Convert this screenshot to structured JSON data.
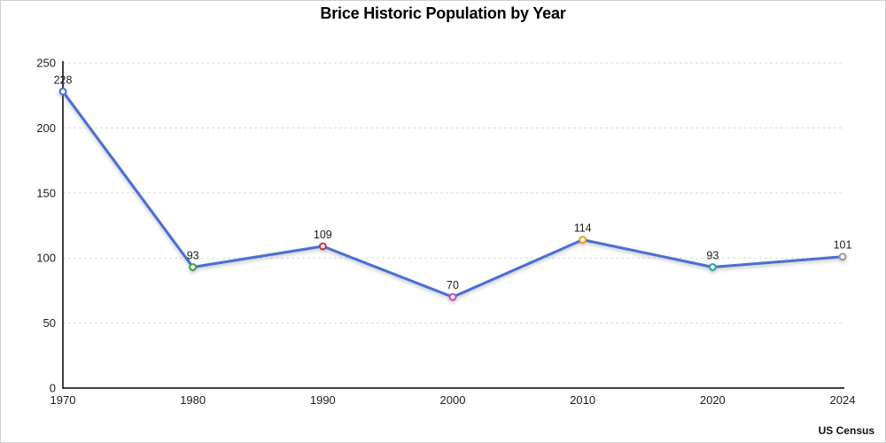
{
  "chart_data": {
    "type": "line",
    "title": "Brice Historic Population by Year",
    "source": "US Census",
    "categories": [
      "1970",
      "1980",
      "1990",
      "2000",
      "2010",
      "2020",
      "2024"
    ],
    "values": [
      228,
      93,
      109,
      70,
      114,
      93,
      101
    ],
    "point_colors": [
      "#4a6fd4",
      "#43a047",
      "#cf3043",
      "#c050c0",
      "#f59b1e",
      "#1fa79b",
      "#9a9a9a"
    ],
    "line_color": "#4a6fd4",
    "grid_color": "#d9d9d9",
    "axis_color": "#000000",
    "label_color": "#1d1d1d",
    "xlabel": "",
    "ylabel": "",
    "ylim": [
      0,
      250
    ],
    "yticks": [
      0,
      50,
      100,
      150,
      200,
      250
    ],
    "grid": "horizontal-dashed",
    "legend": "none"
  }
}
